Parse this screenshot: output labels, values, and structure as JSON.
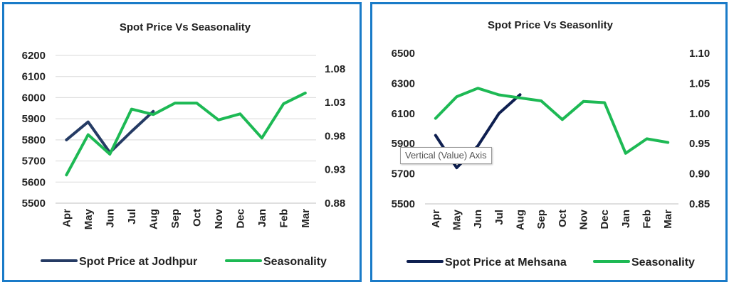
{
  "colors": {
    "border": "#1a7bc8",
    "series_navy_left": "#253b64",
    "series_navy_right": "#0e1f50",
    "seasonality_green": "#1db954",
    "grid": "#d9d9d9"
  },
  "tooltip": {
    "text": "Vertical (Value) Axis"
  },
  "chart_data": [
    {
      "type": "line",
      "title": "Spot Price Vs Seasonality",
      "categories": [
        "Apr",
        "May",
        "Jun",
        "Jul",
        "Aug",
        "Sep",
        "Oct",
        "Nov",
        "Dec",
        "Jan",
        "Feb",
        "Mar"
      ],
      "ylim": [
        5500,
        6200
      ],
      "yticks": [
        "6200",
        "6100",
        "6000",
        "5900",
        "5800",
        "5700",
        "5600",
        "5500"
      ],
      "y2lim": [
        0.88,
        1.1
      ],
      "y2ticks": [
        "1.08",
        "1.03",
        "0.98",
        "0.93",
        "0.88"
      ],
      "legend_position": "bottom",
      "grid": true,
      "series": [
        {
          "name": "Spot Price at Jodhpur",
          "axis": "left",
          "values": [
            5800,
            5885,
            5740,
            5840,
            5935,
            null,
            null,
            null,
            null,
            null,
            null,
            null
          ]
        },
        {
          "name": "Seasonality",
          "axis": "right",
          "values": [
            0.922,
            0.982,
            0.953,
            1.02,
            1.012,
            1.029,
            1.029,
            1.004,
            1.013,
            0.977,
            1.028,
            1.044
          ]
        }
      ]
    },
    {
      "type": "line",
      "title": "Spot Price Vs Seasonlity",
      "categories": [
        "Apr",
        "May",
        "Jun",
        "Jul",
        "Aug",
        "Sep",
        "Oct",
        "Nov",
        "Dec",
        "Jan",
        "Feb",
        "Mar"
      ],
      "ylim": [
        5500,
        6500
      ],
      "yticks": [
        "6500",
        "6300",
        "6100",
        "5900",
        "5700",
        "5500"
      ],
      "y2lim": [
        0.85,
        1.1
      ],
      "y2ticks": [
        "1.10",
        "1.05",
        "1.00",
        "0.95",
        "0.90",
        "0.85"
      ],
      "legend_position": "bottom",
      "grid": false,
      "series": [
        {
          "name": "Spot Price at Mehsana",
          "axis": "left",
          "values": [
            5955,
            5740,
            5885,
            6100,
            6225,
            null,
            null,
            null,
            null,
            null,
            null,
            null
          ]
        },
        {
          "name": "Seasonality",
          "axis": "right",
          "values": [
            0.992,
            1.028,
            1.042,
            1.031,
            1.026,
            1.021,
            0.99,
            1.02,
            1.018,
            0.934,
            0.958,
            0.952
          ]
        }
      ]
    }
  ]
}
